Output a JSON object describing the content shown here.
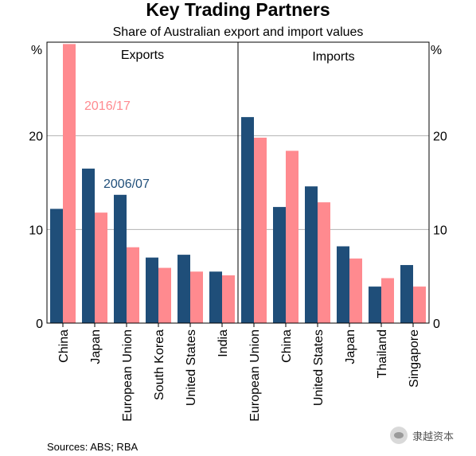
{
  "chart_data": [
    {
      "type": "bar",
      "title": "Key Trading Partners",
      "subtitle": "Share of Australian export and import values",
      "panel_title": "Exports",
      "ylabel": "%",
      "ylim": [
        0,
        30
      ],
      "yticks": [
        0,
        10,
        20
      ],
      "grid": true,
      "categories": [
        "China",
        "Japan",
        "European Union",
        "South Korea",
        "United States",
        "India"
      ],
      "series": [
        {
          "name": "2006/07",
          "color": "#1f4e79",
          "values": [
            12.2,
            16.5,
            13.7,
            7.0,
            7.3,
            5.5
          ]
        },
        {
          "name": "2016/17",
          "color": "#ff8a8f",
          "values": [
            29.8,
            11.8,
            8.1,
            5.9,
            5.5,
            5.1
          ]
        }
      ],
      "annotations": [
        {
          "text": "2016/17",
          "color": "#ff8a8f"
        },
        {
          "text": "2006/07",
          "color": "#1f4e79"
        }
      ]
    },
    {
      "type": "bar",
      "panel_title": "Imports",
      "ylabel": "%",
      "ylim": [
        0,
        30
      ],
      "yticks": [
        0,
        10,
        20
      ],
      "grid": true,
      "categories": [
        "European Union",
        "China",
        "United States",
        "Japan",
        "Thailand",
        "Singapore"
      ],
      "series": [
        {
          "name": "2006/07",
          "color": "#1f4e79",
          "values": [
            22.0,
            12.4,
            14.6,
            8.2,
            3.9,
            6.2
          ]
        },
        {
          "name": "2016/17",
          "color": "#ff8a8f",
          "values": [
            19.8,
            18.4,
            12.9,
            6.9,
            4.8,
            3.9
          ]
        }
      ]
    }
  ],
  "footer": {
    "sources": "Sources:   ABS; RBA",
    "watermark": "隶越资本"
  }
}
